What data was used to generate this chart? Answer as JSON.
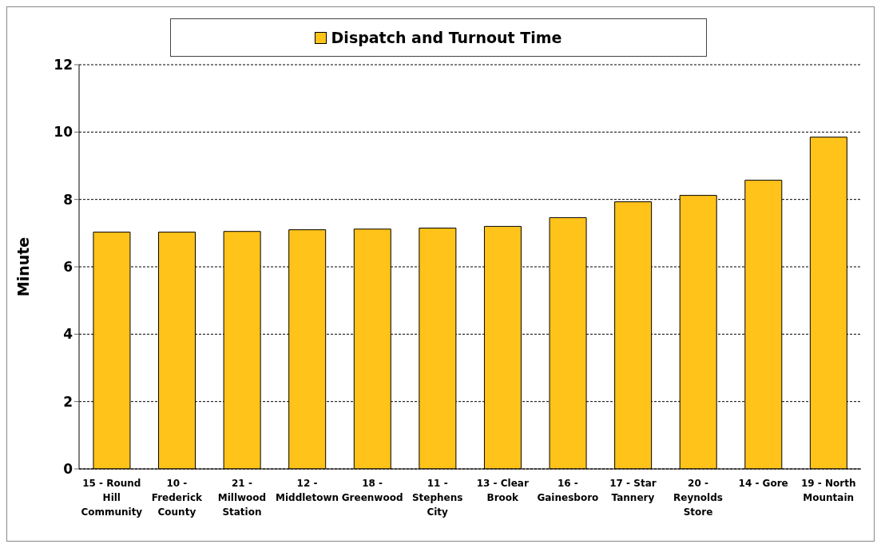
{
  "chart_data": {
    "type": "bar",
    "ylabel": "Minute",
    "categories": [
      "15 - Round Hill Community",
      "10 - Frederick County",
      "21 - Millwood Station",
      "12 - Middletown",
      "18 - Greenwood",
      "11 - Stephens City",
      "13 - Clear Brook",
      "16 - Gainesboro",
      "17 - Star Tannery",
      "20 - Reynolds Store",
      "14 - Gore",
      "19 - North Mountain"
    ],
    "series": [
      {
        "name": "Dispatch and Turnout Time",
        "color": "#ffc31a",
        "values": [
          7.03,
          7.03,
          7.05,
          7.1,
          7.12,
          7.15,
          7.2,
          7.46,
          7.93,
          8.12,
          8.57,
          9.85
        ]
      }
    ],
    "ylim": [
      0,
      12
    ],
    "yticks": [
      0,
      2,
      4,
      6,
      8,
      10,
      12
    ],
    "grid": "y",
    "legend": "top"
  }
}
